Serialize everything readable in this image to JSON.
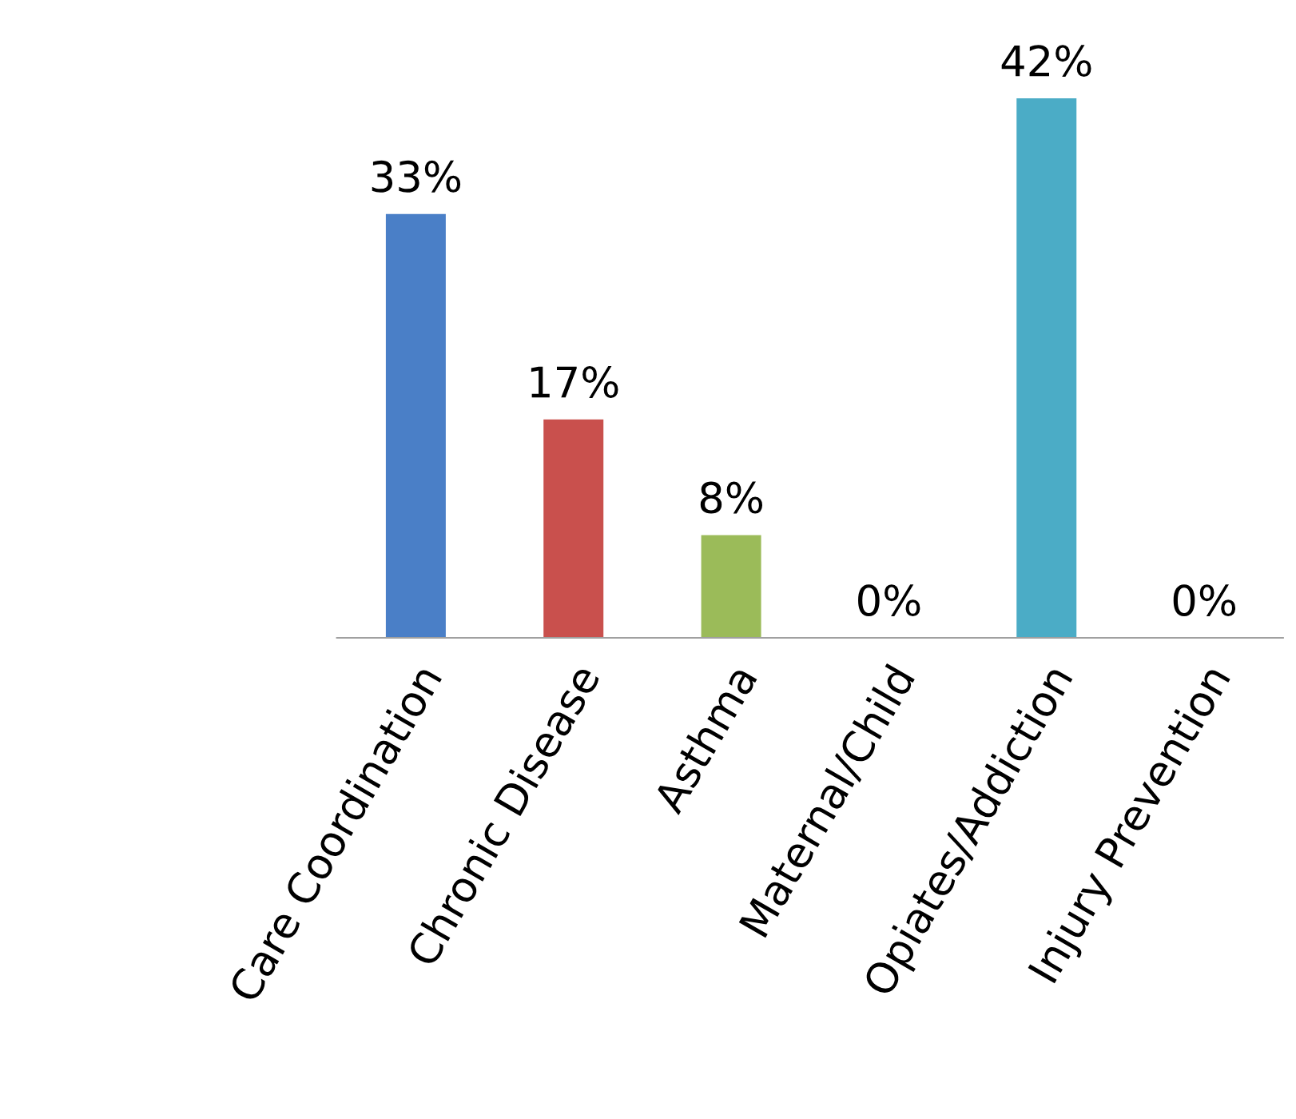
{
  "chart_data": {
    "type": "bar",
    "categories": [
      "Care Coordination",
      "Chronic Disease",
      "Asthma",
      "Maternal/Child",
      "Opiates/Addiction",
      "Injury Prevention"
    ],
    "values": [
      33,
      17,
      8,
      0,
      42,
      0
    ],
    "colors": [
      "#4a7fc7",
      "#c9504d",
      "#9bbb59",
      "#7f64a2",
      "#4bacc6",
      "#f79646"
    ],
    "value_labels": [
      "33%",
      "17%",
      "8%",
      "0%",
      "42%",
      "0%"
    ],
    "grid": false
  }
}
